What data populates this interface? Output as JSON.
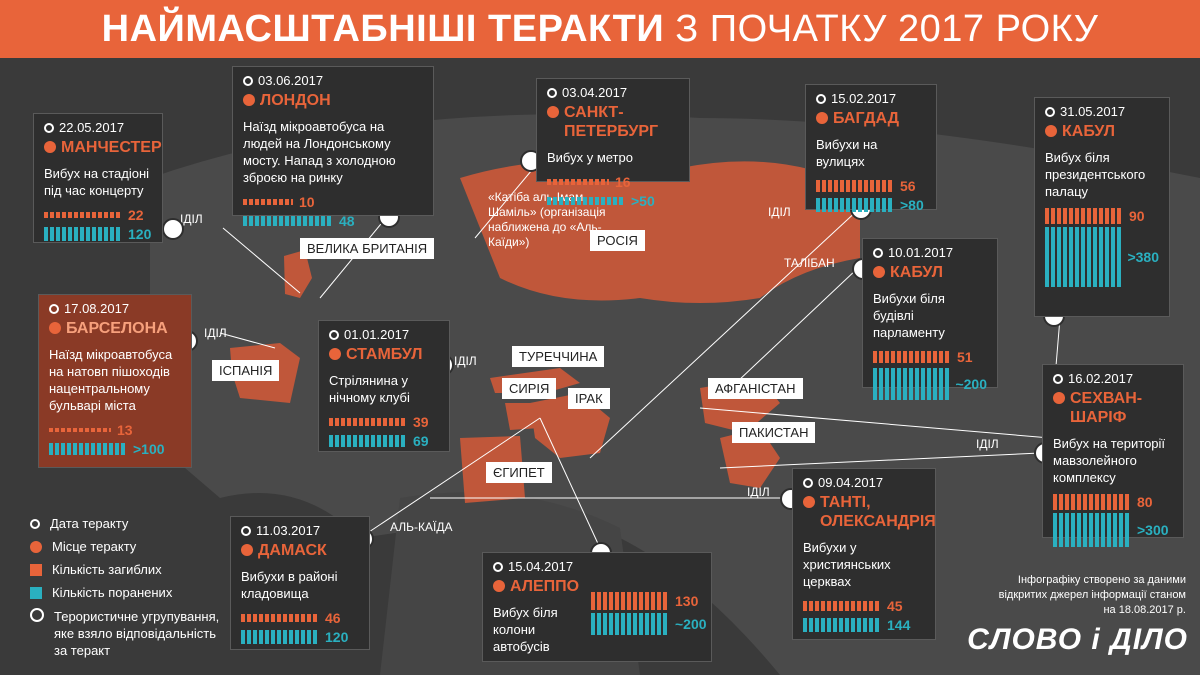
{
  "banner": {
    "title_bold": "НАЙМАСШТАБНІШІ ТЕРАКТИ",
    "title_rest": "З ПОЧАТКУ 2017 РОКУ"
  },
  "countries": {
    "uk": "ВЕЛИКА БРИТАНІЯ",
    "spain": "ІСПАНІЯ",
    "turkey": "ТУРЕЧЧИНА",
    "syria": "СИРІЯ",
    "iraq": "ІРАК",
    "egypt": "ЄГИПЕТ",
    "russia": "РОСІЯ",
    "afghanistan": "АФГАНІСТАН",
    "pakistan": "ПАКИСТАН"
  },
  "groups": {
    "isil": "ІДІЛ",
    "taliban": "ТАЛІБАН",
    "alqaeda": "АЛЬ-КАЇДА"
  },
  "russia_note": "«Катіба аль-Імам Шаміль» (організація наближена до «Аль-Каїди»)",
  "attacks": [
    {
      "id": "manchester",
      "date": "22.05.2017",
      "city": "МАНЧЕСТЕР",
      "desc": "Вибух на стадіоні під час концерту",
      "killed": "22",
      "wounded": "120"
    },
    {
      "id": "london",
      "date": "03.06.2017",
      "city": "ЛОНДОН",
      "desc": "Наїзд мікроавтобуса на людей на Лондонському мосту. Напад з холодною зброєю на ринку",
      "killed": "10",
      "wounded": "48"
    },
    {
      "id": "stpete",
      "date": "03.04.2017",
      "city": "САНКТ-ПЕТЕРБУРГ",
      "desc": "Вибух у метро",
      "killed": "16",
      "wounded": ">50"
    },
    {
      "id": "baghdad",
      "date": "15.02.2017",
      "city": "БАГДАД",
      "desc": "Вибухи на вулицях",
      "killed": "56",
      "wounded": ">80"
    },
    {
      "id": "kabul1",
      "date": "31.05.2017",
      "city": "КАБУЛ",
      "desc": "Вибух біля президентського палацу",
      "killed": "90",
      "wounded": ">380"
    },
    {
      "id": "kabul2",
      "date": "10.01.2017",
      "city": "КАБУЛ",
      "desc": "Вибухи біля будівлі парламенту",
      "killed": "51",
      "wounded": "~200"
    },
    {
      "id": "barcelona",
      "date": "17.08.2017",
      "city": "БАРСЕЛОНА",
      "desc": "Наїзд мікроавтобуса на натовп пішоходів нацентральному бульварі міста",
      "killed": "13",
      "wounded": ">100"
    },
    {
      "id": "istanbul",
      "date": "01.01.2017",
      "city": "СТАМБУЛ",
      "desc": "Стрілянина у нічному клубі",
      "killed": "39",
      "wounded": "69"
    },
    {
      "id": "sehwan",
      "date": "16.02.2017",
      "city": "СЕХВАН-ШАРІФ",
      "desc": "Вибух на території мавзолейного комплексу",
      "killed": "80",
      "wounded": ">300"
    },
    {
      "id": "damascus",
      "date": "11.03.2017",
      "city": "ДАМАСК",
      "desc": "Вибухи в районі кладовища",
      "killed": "46",
      "wounded": "120"
    },
    {
      "id": "aleppo",
      "date": "15.04.2017",
      "city": "АЛЕППО",
      "desc": "Вибух біля колони автобусів",
      "killed": "130",
      "wounded": "~200"
    },
    {
      "id": "tanta",
      "date": "09.04.2017",
      "city": "ТАНТІ, ОЛЕКСАНДРІЯ",
      "desc": "Вибухи у християнських церквах",
      "killed": "45",
      "wounded": "144"
    }
  ],
  "legend": {
    "date": "Дата теракту",
    "place": "Місце теракту",
    "killed": "Кількість загиблих",
    "wounded": "Кількість поранених",
    "group": "Терористичне угрупування, яке взяло відповідальність за теракт"
  },
  "colors": {
    "accent": "#e8643a",
    "killed": "#e8643a",
    "wounded": "#2ab0c0",
    "background": "#3a3a3a"
  },
  "credit": "Інфографіку створено за даними відкритих джерел інформації станом на 18.08.2017 р.",
  "logo": "СЛОВО і ДІЛО"
}
